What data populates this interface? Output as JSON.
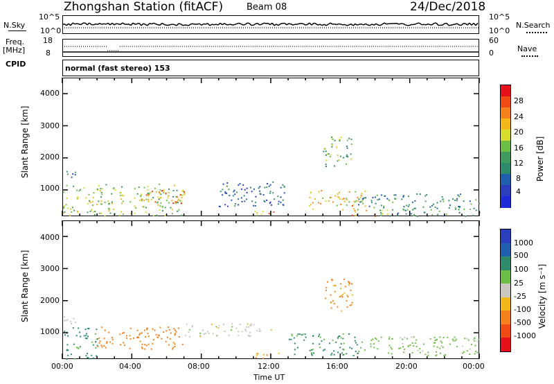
{
  "header": {
    "station": "Zhongshan Station (fitACF)",
    "beam": "Beam 08",
    "date": "24/Dec/2018"
  },
  "top_panels": {
    "nsky_label": "N.Sky",
    "nsky_ticks": [
      "10^5",
      "10^0"
    ],
    "nsearch_label": "N.Search",
    "nsearch_ticks": [
      "10^5",
      "10^0"
    ],
    "freq_label_1": "Freq.",
    "freq_label_2": "[MHz]",
    "freq_ticks": [
      "18",
      "8"
    ],
    "nave_label": "Nave",
    "nave_ticks": [
      "60",
      "0"
    ],
    "cpid_label": "CPID",
    "cpid_text": "normal (fast stereo) 153"
  },
  "power_panel": {
    "ylabel": "Slant Range [km]",
    "yticks": [
      "4000",
      "3000",
      "2000",
      "1000"
    ],
    "colorbar_label": "Power [dB]",
    "colorbar_ticks": [
      "28",
      "24",
      "20",
      "16",
      "12",
      "8",
      "4"
    ],
    "colorbar_colors": [
      "#e8111a",
      "#f24a13",
      "#f7811c",
      "#f2b81a",
      "#d6dd2c",
      "#6cbe45",
      "#3f9a5e",
      "#2d8a6a",
      "#1f5fae",
      "#2a3fbf",
      "#1e2bd8"
    ]
  },
  "velocity_panel": {
    "ylabel": "Slant Range [km]",
    "yticks": [
      "4000",
      "3000",
      "2000",
      "1000"
    ],
    "colorbar_label": "Velocity [m s⁻¹]",
    "colorbar_ticks": [
      "1000",
      "500",
      "100",
      "25",
      "-25",
      "-100",
      "-500",
      "-1000"
    ],
    "colorbar_colors": [
      "#2a3fbf",
      "#1f5fae",
      "#2d8a6a",
      "#6cbe45",
      "#c8c8c0",
      "#f2b81a",
      "#f7811c",
      "#f24a13",
      "#e8111a"
    ]
  },
  "xaxis": {
    "ticks": [
      "00:00",
      "04:00",
      "08:00",
      "12:00",
      "16:00",
      "20:00",
      "00:00"
    ],
    "label": "Time UT"
  },
  "chart_data": {
    "type": "heatmap",
    "x_range_hours": [
      0,
      24
    ],
    "y_range_km": [
      180,
      4500
    ],
    "power_scatter_regions": [
      {
        "t_start": 0.0,
        "t_end": 7.0,
        "range_low": 200,
        "range_high": 1200,
        "power_db": 16
      },
      {
        "t_start": 4.5,
        "t_end": 7.0,
        "range_low": 600,
        "range_high": 1000,
        "power_db": 24
      },
      {
        "t_start": 0.0,
        "t_end": 0.8,
        "range_low": 1300,
        "range_high": 1600,
        "power_db": 8
      },
      {
        "t_start": 9.0,
        "t_end": 13.0,
        "range_low": 500,
        "range_high": 1300,
        "power_db": 6
      },
      {
        "t_start": 11.0,
        "t_end": 12.5,
        "range_low": 200,
        "range_high": 400,
        "power_db": 22
      },
      {
        "t_start": 14.0,
        "t_end": 17.5,
        "range_low": 400,
        "range_high": 1000,
        "power_db": 20
      },
      {
        "t_start": 15.0,
        "t_end": 16.7,
        "range_low": 1700,
        "range_high": 2700,
        "power_db": 14
      },
      {
        "t_start": 17.0,
        "t_end": 24.0,
        "range_low": 200,
        "range_high": 900,
        "power_db": 10
      },
      {
        "t_start": 16.5,
        "t_end": 19.0,
        "range_low": 200,
        "range_high": 400,
        "power_db": 24
      }
    ],
    "velocity_scatter_regions": [
      {
        "t_start": 0.0,
        "t_end": 2.0,
        "range_low": 200,
        "range_high": 1200,
        "velocity": 150
      },
      {
        "t_start": 2.0,
        "t_end": 7.0,
        "range_low": 500,
        "range_high": 1200,
        "velocity": -300
      },
      {
        "t_start": 0.0,
        "t_end": 0.8,
        "range_low": 1300,
        "range_high": 1700,
        "velocity": 0
      },
      {
        "t_start": 7.0,
        "t_end": 12.0,
        "range_low": 900,
        "range_high": 1300,
        "velocity": 0
      },
      {
        "t_start": 11.0,
        "t_end": 12.5,
        "range_low": 200,
        "range_high": 400,
        "velocity": -120
      },
      {
        "t_start": 13.0,
        "t_end": 17.0,
        "range_low": 300,
        "range_high": 1000,
        "velocity": 150
      },
      {
        "t_start": 15.0,
        "t_end": 16.7,
        "range_low": 1700,
        "range_high": 2700,
        "velocity": -150
      },
      {
        "t_start": 17.0,
        "t_end": 24.0,
        "range_low": 300,
        "range_high": 900,
        "velocity": 50
      }
    ]
  }
}
